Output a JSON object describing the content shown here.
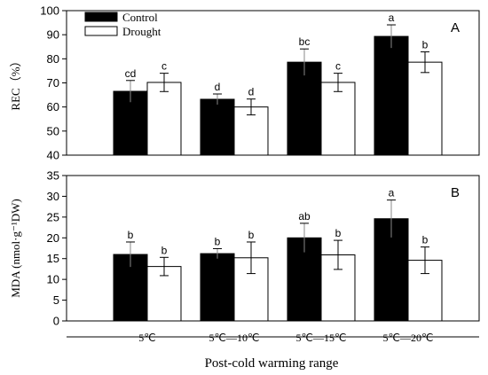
{
  "chart_data": {
    "type": "bar",
    "categories": [
      "5℃",
      "5℃—10℃",
      "5℃—15℃",
      "5℃—20℃"
    ],
    "xlabel": "Post-cold warming range",
    "legend": [
      "Control",
      "Drought"
    ],
    "colors": {
      "control": "#000000",
      "drought": "#ffffff"
    },
    "grid": false,
    "legend_position": "top-left",
    "panels": [
      {
        "label": "A",
        "ylabel": "REC（%）",
        "ylim": [
          40,
          100
        ],
        "yticks": [
          40,
          50,
          60,
          70,
          80,
          90,
          100
        ],
        "series": [
          {
            "name": "Control",
            "values": [
              66.5,
              63.2,
              78.6,
              89.3
            ],
            "errors": [
              4.5,
              2.2,
              5.5,
              4.8
            ],
            "letters": [
              "cd",
              "d",
              "bc",
              "a"
            ]
          },
          {
            "name": "Drought",
            "values": [
              70.2,
              60.0,
              70.2,
              78.6
            ],
            "errors": [
              3.8,
              3.3,
              3.8,
              4.3
            ],
            "letters": [
              "c",
              "d",
              "c",
              "b"
            ]
          }
        ]
      },
      {
        "label": "B",
        "ylabel": "MDA (nmol·g⁻¹DW)",
        "ylim": [
          0,
          35
        ],
        "yticks": [
          0,
          5,
          10,
          15,
          20,
          25,
          30,
          35
        ],
        "series": [
          {
            "name": "Control",
            "values": [
              16.0,
              16.2,
              20.0,
              24.6
            ],
            "errors": [
              3.0,
              1.2,
              3.5,
              4.5
            ],
            "letters": [
              "b",
              "b",
              "ab",
              "a"
            ]
          },
          {
            "name": "Drought",
            "values": [
              13.1,
              15.2,
              15.9,
              14.6
            ],
            "errors": [
              2.2,
              3.8,
              3.5,
              3.2
            ],
            "letters": [
              "b",
              "b",
              "b",
              "b"
            ]
          }
        ]
      }
    ]
  }
}
